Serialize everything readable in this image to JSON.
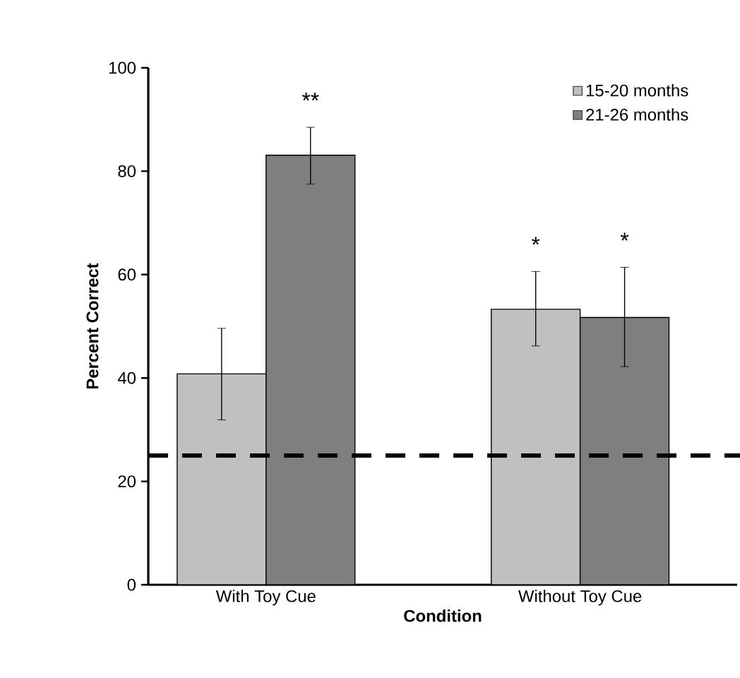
{
  "chart_data": {
    "type": "bar",
    "xlabel": "Condition",
    "ylabel": "Percent Correct",
    "categories": [
      "With Toy Cue",
      "Without Toy Cue"
    ],
    "series": [
      {
        "name": "15-20 months",
        "color": "#c0c0c0",
        "values": [
          40.8,
          53.3
        ],
        "errors": [
          [
            31.9,
            49.6
          ],
          [
            46.2,
            60.6
          ]
        ]
      },
      {
        "name": "21-26 months",
        "color": "#7f7f7f",
        "values": [
          83.1,
          51.7
        ],
        "errors": [
          [
            77.5,
            88.5
          ],
          [
            42.2,
            61.4
          ]
        ]
      }
    ],
    "ylim": [
      0,
      100
    ],
    "yticks": [
      0,
      20,
      40,
      60,
      80,
      100
    ],
    "grid": false,
    "legend": "top right",
    "ref_lines": [
      {
        "axis": "y",
        "value": 25,
        "color": "#000000",
        "line_style": "dashed"
      }
    ],
    "annotations": [
      "**",
      "*",
      "*"
    ]
  }
}
